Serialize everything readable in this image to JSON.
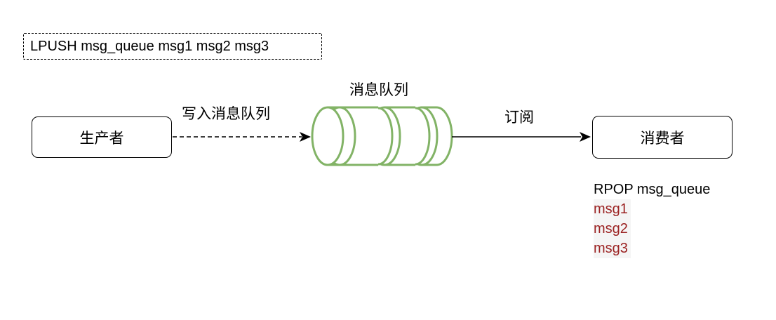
{
  "command": {
    "text": "LPUSH msg_queue msg1 msg2 msg3"
  },
  "nodes": {
    "producer": "生产者",
    "consumer": "消费者",
    "queue_title": "消息队列"
  },
  "edges": {
    "write": "写入消息队列",
    "subscribe": "订阅"
  },
  "result": {
    "command": "RPOP msg_queue",
    "messages": [
      "msg1",
      "msg2",
      "msg3"
    ]
  },
  "colors": {
    "queue_stroke": "#82b366",
    "message_text": "#9b2222"
  }
}
